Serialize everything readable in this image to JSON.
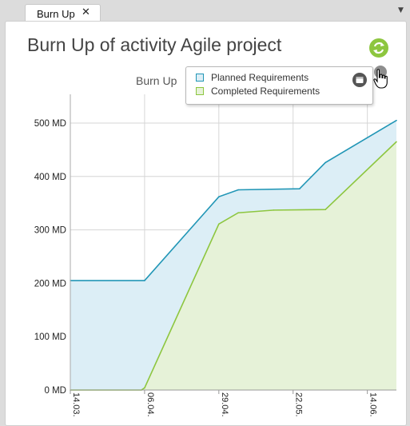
{
  "tab": {
    "label": "Burn Up",
    "close": "✕",
    "menu": "▼"
  },
  "header": {
    "title": "Burn Up of activity Agile project"
  },
  "legend": {
    "items": [
      {
        "label": "Planned Requirements",
        "stroke": "#2196b6",
        "fill": "#dceef6"
      },
      {
        "label": "Completed Requirements",
        "stroke": "#8dc63f",
        "fill": "#e6f2d8"
      }
    ]
  },
  "icons": {
    "refresh": "refresh-icon",
    "legend_toggle": "legend-toggle-icon",
    "cursor": "hand-cursor-icon"
  },
  "chart_data": {
    "type": "area",
    "title": "Burn Up",
    "x_tick_labels": [
      "14.03.",
      "06.04.",
      "29.04.",
      "22.05.",
      "14.06."
    ],
    "y_tick_labels": [
      "0 MD",
      "100 MD",
      "200 MD",
      "300 MD",
      "400 MD",
      "500 MD"
    ],
    "ylim": [
      0,
      500
    ],
    "grid": true,
    "legend_position": "top-right",
    "series": [
      {
        "name": "Planned Requirements",
        "color": "#2196b6",
        "x": [
          "2014-03-14",
          "2014-04-06",
          "2014-04-29",
          "2014-05-05",
          "2014-05-24",
          "2014-06-01",
          "2014-06-23"
        ],
        "values": [
          205,
          205,
          362,
          375,
          377,
          426,
          505
        ]
      },
      {
        "name": "Completed Requirements",
        "color": "#8dc63f",
        "x": [
          "2014-03-14",
          "2014-04-05",
          "2014-04-06",
          "2014-04-29",
          "2014-05-05",
          "2014-05-16",
          "2014-06-01",
          "2014-06-23"
        ],
        "values": [
          0,
          0,
          4,
          311,
          332,
          337,
          338,
          465
        ]
      }
    ]
  }
}
